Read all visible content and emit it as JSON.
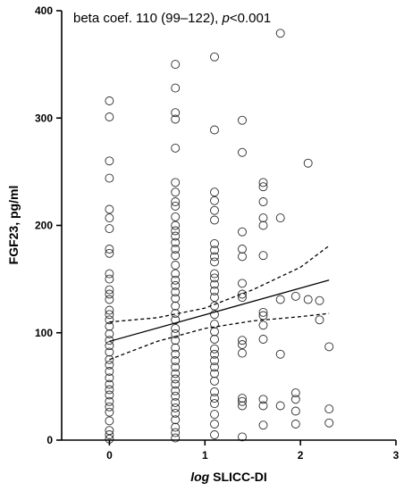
{
  "chart_data": {
    "type": "scatter",
    "title": "",
    "annotation": {
      "prefix": "beta coef. 110 (99–122), ",
      "p_symbol": "p",
      "suffix": "<0.001"
    },
    "xlabel": {
      "italic": "log",
      "rest": " SLICC-DI"
    },
    "ylabel": "FGF23, pg/ml",
    "xlim": [
      -0.5,
      3
    ],
    "ylim": [
      0,
      400
    ],
    "x_ticks": [
      0,
      1,
      2,
      3
    ],
    "y_ticks": [
      0,
      100,
      200,
      300,
      400
    ],
    "grid": false,
    "legend": "none",
    "fit": {
      "line": [
        [
          0,
          92
        ],
        [
          2.3,
          149
        ]
      ],
      "ci_upper": [
        [
          0,
          110
        ],
        [
          0.5,
          114
        ],
        [
          1,
          123
        ],
        [
          1.5,
          140
        ],
        [
          2,
          161
        ],
        [
          2.3,
          181
        ]
      ],
      "ci_lower": [
        [
          0,
          75
        ],
        [
          0.5,
          92
        ],
        [
          1,
          104
        ],
        [
          1.5,
          111
        ],
        [
          2,
          115
        ],
        [
          2.3,
          118
        ]
      ]
    },
    "points": [
      [
        0,
        316
      ],
      [
        0,
        301
      ],
      [
        0,
        260
      ],
      [
        0,
        244
      ],
      [
        0,
        215
      ],
      [
        0,
        207
      ],
      [
        0,
        197
      ],
      [
        0,
        178
      ],
      [
        0,
        174
      ],
      [
        0,
        155
      ],
      [
        0,
        150
      ],
      [
        0,
        140
      ],
      [
        0,
        136
      ],
      [
        0,
        131
      ],
      [
        0,
        121
      ],
      [
        0,
        117
      ],
      [
        0,
        112
      ],
      [
        0,
        106
      ],
      [
        0,
        99
      ],
      [
        0,
        93
      ],
      [
        0,
        88
      ],
      [
        0,
        82
      ],
      [
        0,
        75
      ],
      [
        0,
        70
      ],
      [
        0,
        64
      ],
      [
        0,
        58
      ],
      [
        0,
        52
      ],
      [
        0,
        47
      ],
      [
        0,
        42
      ],
      [
        0,
        36
      ],
      [
        0,
        31
      ],
      [
        0,
        26
      ],
      [
        0,
        18
      ],
      [
        0,
        9
      ],
      [
        0,
        5
      ],
      [
        0,
        1
      ],
      [
        0.69,
        350
      ],
      [
        0.69,
        328
      ],
      [
        0.69,
        305
      ],
      [
        0.69,
        299
      ],
      [
        0.69,
        272
      ],
      [
        0.69,
        240
      ],
      [
        0.69,
        231
      ],
      [
        0.69,
        222
      ],
      [
        0.69,
        218
      ],
      [
        0.69,
        208
      ],
      [
        0.69,
        200
      ],
      [
        0.69,
        195
      ],
      [
        0.69,
        190
      ],
      [
        0.69,
        184
      ],
      [
        0.69,
        178
      ],
      [
        0.69,
        172
      ],
      [
        0.69,
        163
      ],
      [
        0.69,
        155
      ],
      [
        0.69,
        149
      ],
      [
        0.69,
        144
      ],
      [
        0.69,
        138
      ],
      [
        0.69,
        132
      ],
      [
        0.69,
        125
      ],
      [
        0.69,
        118
      ],
      [
        0.69,
        112
      ],
      [
        0.69,
        104
      ],
      [
        0.69,
        99
      ],
      [
        0.69,
        93
      ],
      [
        0.69,
        86
      ],
      [
        0.69,
        80
      ],
      [
        0.69,
        74
      ],
      [
        0.69,
        68
      ],
      [
        0.69,
        62
      ],
      [
        0.69,
        57
      ],
      [
        0.69,
        52
      ],
      [
        0.69,
        46
      ],
      [
        0.69,
        41
      ],
      [
        0.69,
        35
      ],
      [
        0.69,
        30
      ],
      [
        0.69,
        25
      ],
      [
        0.69,
        19
      ],
      [
        0.69,
        12
      ],
      [
        0.69,
        7
      ],
      [
        0.69,
        2
      ],
      [
        1.1,
        357
      ],
      [
        1.1,
        289
      ],
      [
        1.1,
        231
      ],
      [
        1.1,
        223
      ],
      [
        1.1,
        214
      ],
      [
        1.1,
        205
      ],
      [
        1.1,
        183
      ],
      [
        1.1,
        177
      ],
      [
        1.1,
        171
      ],
      [
        1.1,
        166
      ],
      [
        1.1,
        155
      ],
      [
        1.1,
        151
      ],
      [
        1.1,
        145
      ],
      [
        1.1,
        139
      ],
      [
        1.1,
        133
      ],
      [
        1.1,
        125
      ],
      [
        1.1,
        117
      ],
      [
        1.1,
        108
      ],
      [
        1.1,
        101
      ],
      [
        1.1,
        94
      ],
      [
        1.1,
        85
      ],
      [
        1.1,
        80
      ],
      [
        1.1,
        74
      ],
      [
        1.1,
        68
      ],
      [
        1.1,
        62
      ],
      [
        1.1,
        55
      ],
      [
        1.1,
        45
      ],
      [
        1.1,
        39
      ],
      [
        1.1,
        34
      ],
      [
        1.1,
        24
      ],
      [
        1.1,
        15
      ],
      [
        1.1,
        5
      ],
      [
        1.39,
        298
      ],
      [
        1.39,
        268
      ],
      [
        1.39,
        194
      ],
      [
        1.39,
        178
      ],
      [
        1.39,
        171
      ],
      [
        1.39,
        146
      ],
      [
        1.39,
        136
      ],
      [
        1.39,
        133
      ],
      [
        1.39,
        93
      ],
      [
        1.39,
        89
      ],
      [
        1.39,
        81
      ],
      [
        1.39,
        39
      ],
      [
        1.39,
        36
      ],
      [
        1.39,
        32
      ],
      [
        1.39,
        3
      ],
      [
        1.61,
        240
      ],
      [
        1.61,
        236
      ],
      [
        1.61,
        222
      ],
      [
        1.61,
        207
      ],
      [
        1.61,
        200
      ],
      [
        1.61,
        172
      ],
      [
        1.61,
        119
      ],
      [
        1.61,
        116
      ],
      [
        1.61,
        107
      ],
      [
        1.61,
        94
      ],
      [
        1.61,
        38
      ],
      [
        1.61,
        32
      ],
      [
        1.61,
        14
      ],
      [
        1.79,
        379
      ],
      [
        1.79,
        207
      ],
      [
        1.79,
        131
      ],
      [
        1.79,
        80
      ],
      [
        1.79,
        32
      ],
      [
        1.95,
        134
      ],
      [
        1.95,
        44
      ],
      [
        1.95,
        38
      ],
      [
        1.95,
        27
      ],
      [
        1.95,
        15
      ],
      [
        2.08,
        258
      ],
      [
        2.08,
        131
      ],
      [
        2.2,
        130
      ],
      [
        2.2,
        112
      ],
      [
        2.3,
        87
      ],
      [
        2.3,
        29
      ],
      [
        2.3,
        16
      ]
    ]
  }
}
